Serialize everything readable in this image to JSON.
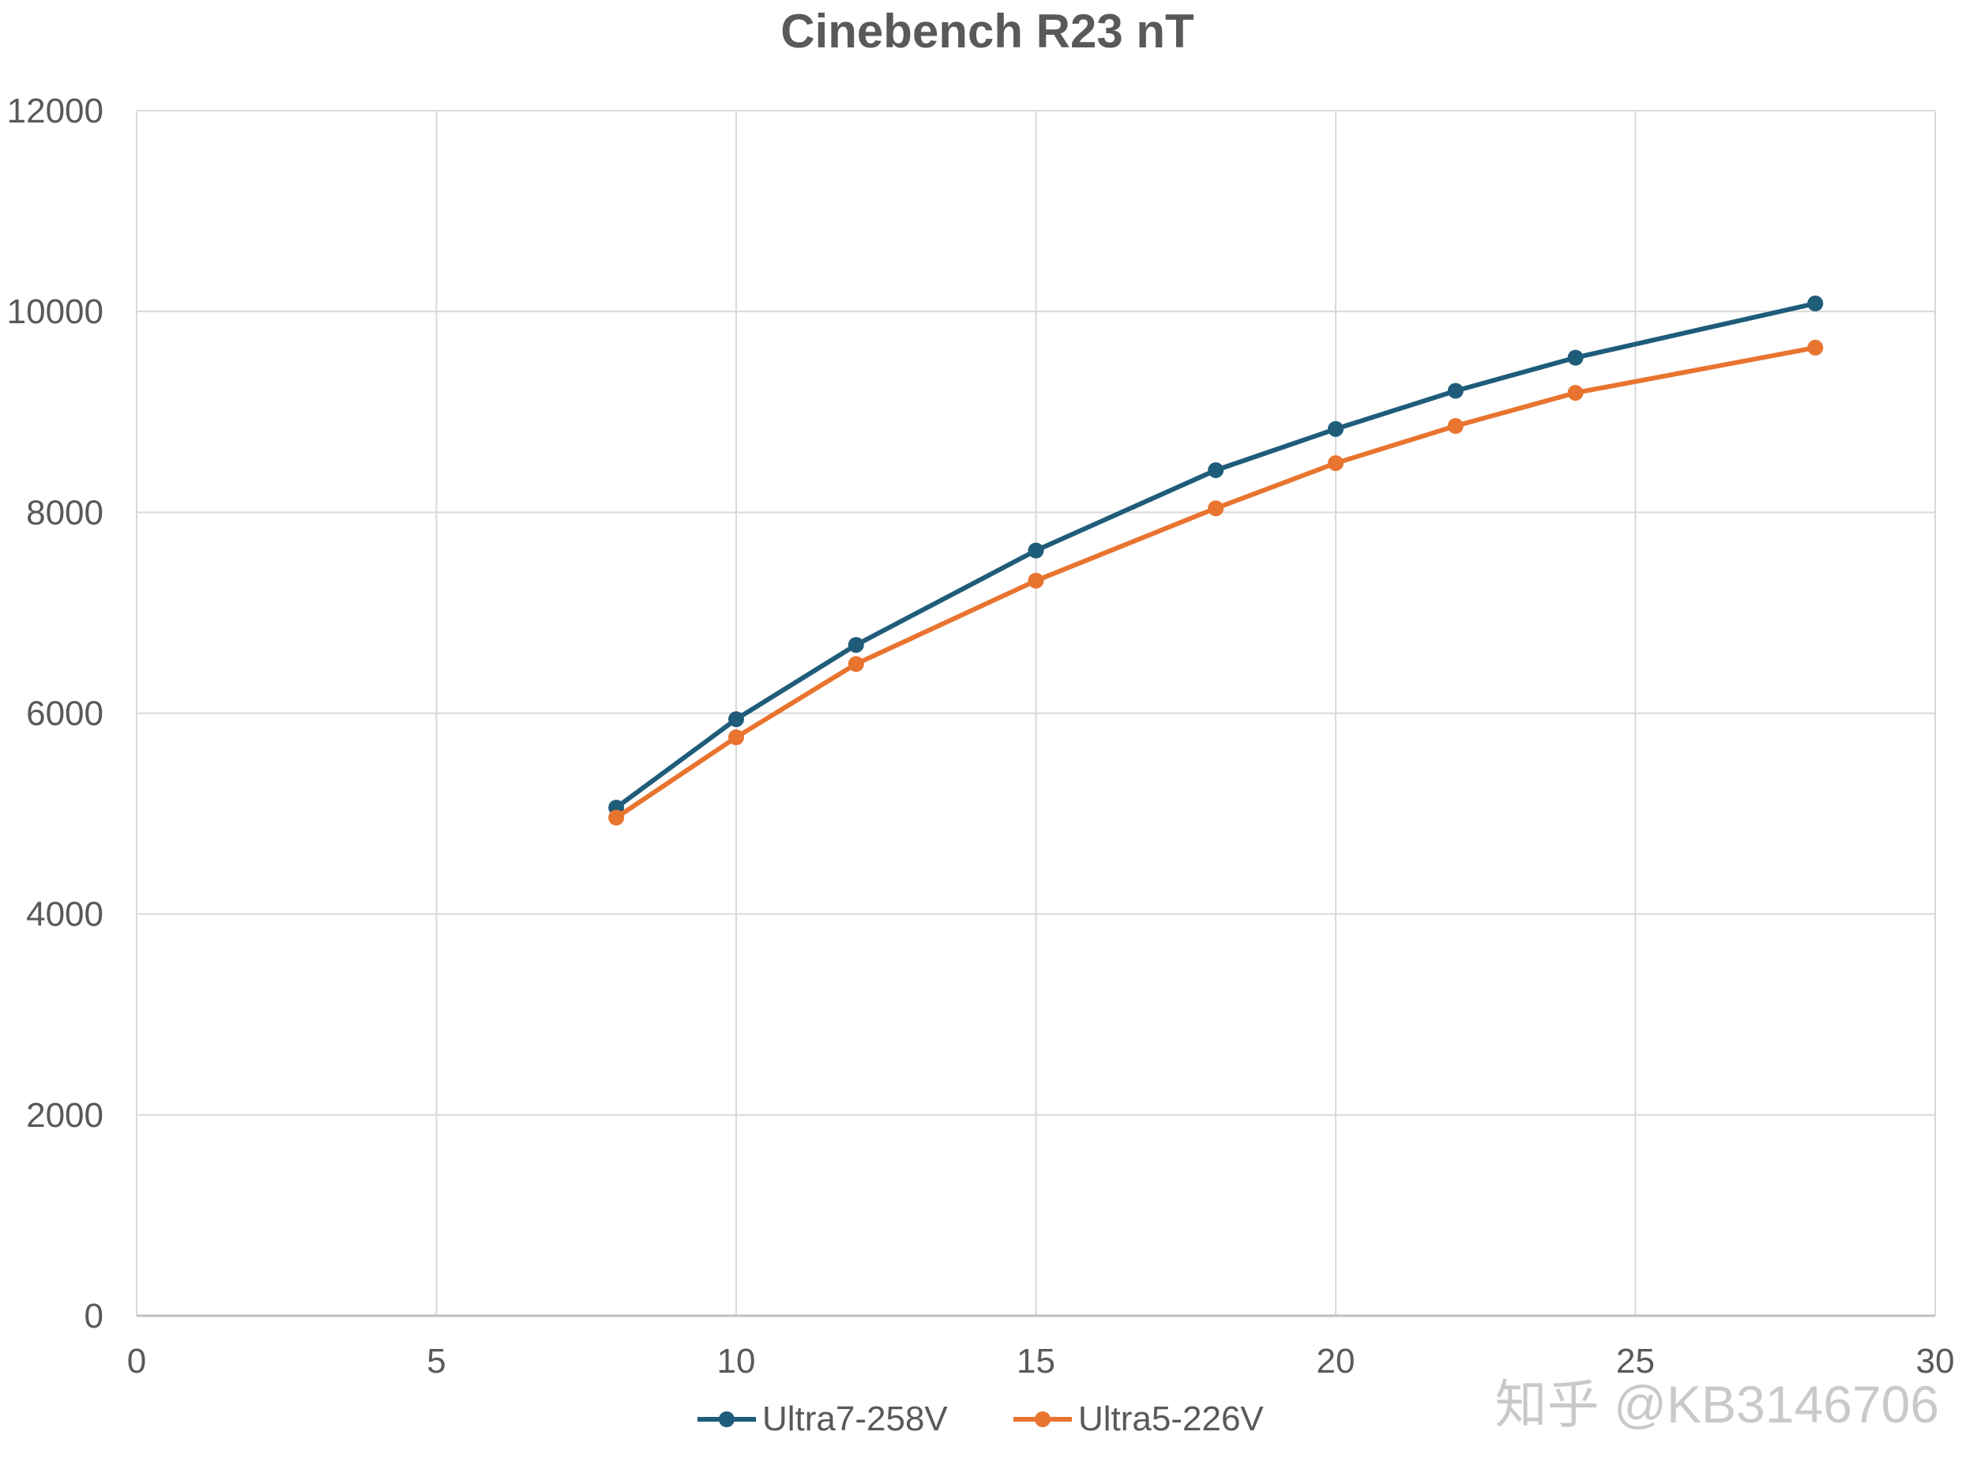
{
  "chart_data": {
    "type": "scatter",
    "title": "Cinebench R23 nT",
    "xlim": [
      0,
      30
    ],
    "ylim": [
      0,
      12000
    ],
    "x_ticks": [
      "0",
      "5",
      "10",
      "15",
      "20",
      "25",
      "30"
    ],
    "y_ticks": [
      "0",
      "2000",
      "4000",
      "6000",
      "8000",
      "10000",
      "12000"
    ],
    "grid": true,
    "legend_position": "bottom",
    "series": [
      {
        "name": "Ultra7-258V",
        "color": "#1f5c7a",
        "x": [
          8,
          10,
          12,
          15,
          18,
          20,
          22,
          24,
          28
        ],
        "y": [
          5060,
          5940,
          6680,
          7620,
          8420,
          8830,
          9210,
          9540,
          10080
        ]
      },
      {
        "name": "Ultra5-226V",
        "color": "#e8742f",
        "x": [
          8,
          10,
          12,
          15,
          18,
          20,
          22,
          24,
          28
        ],
        "y": [
          4960,
          5760,
          6490,
          7320,
          8040,
          8490,
          8860,
          9190,
          9640
        ]
      }
    ]
  },
  "watermark": {
    "text": "知乎 @KB3146706"
  }
}
